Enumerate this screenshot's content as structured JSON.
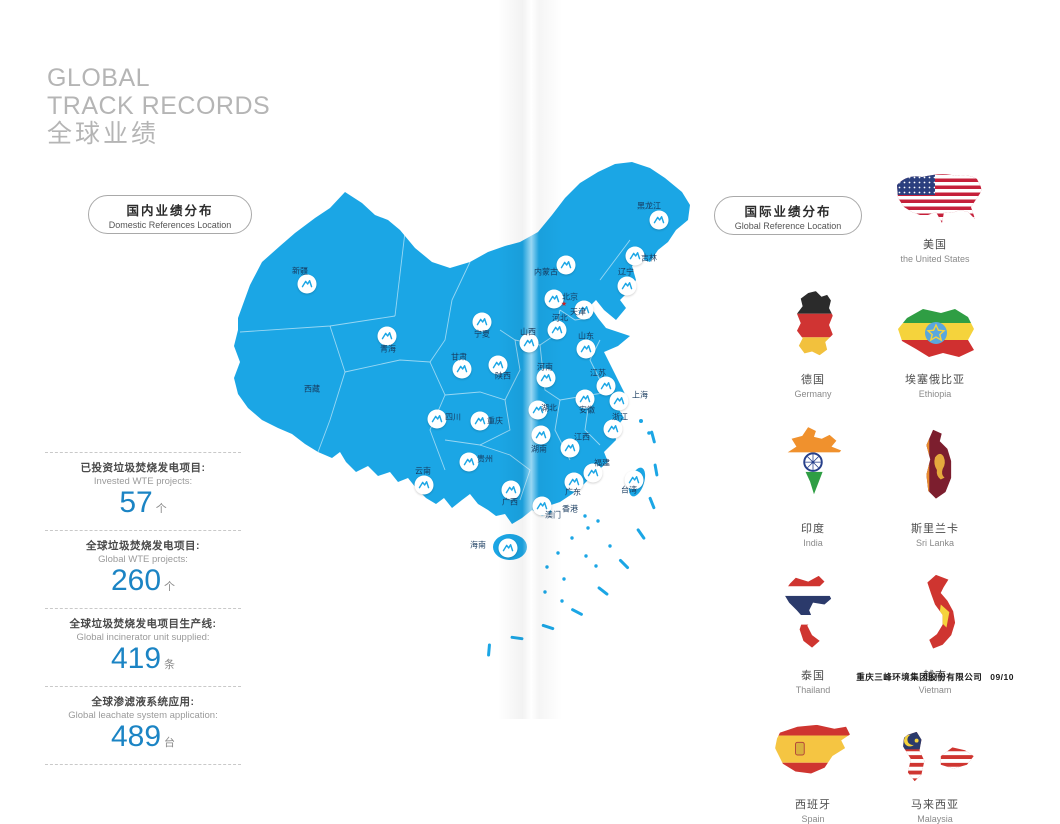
{
  "page": {
    "title_lines": [
      "GLOBAL",
      "TRACK RECORDS",
      "全球业绩"
    ],
    "footer": {
      "company": "重庆三峰环境集团股份有限公司",
      "page_no": "09/10"
    }
  },
  "domestic": {
    "label_zh": "国内业绩分布",
    "label_en": "Domestic References Location",
    "stats": [
      {
        "zh": "已投资垃圾焚烧发电项目:",
        "en": "Invested WTE projects:",
        "value": "57",
        "unit": "个"
      },
      {
        "zh": "全球垃圾焚烧发电项目:",
        "en": "Global WTE projects:",
        "value": "260",
        "unit": "个"
      },
      {
        "zh": "全球垃圾焚烧发电项目生产线:",
        "en": "Global incinerator unit supplied:",
        "value": "419",
        "unit": "条"
      },
      {
        "zh": "全球渗滤液系统应用:",
        "en": "Global leachate system application:",
        "value": "489",
        "unit": "台"
      }
    ],
    "map": {
      "capital_star": [
        564,
        304
      ],
      "provinces": [
        {
          "name": "新疆",
          "label": [
            300,
            271
          ],
          "marker": [
            307,
            284
          ]
        },
        {
          "name": "西藏",
          "label": [
            312,
            389
          ],
          "marker": null
        },
        {
          "name": "青海",
          "label": [
            388,
            349
          ],
          "marker": [
            387,
            336
          ]
        },
        {
          "name": "甘肃",
          "label": [
            459,
            357
          ],
          "marker": [
            462,
            369
          ]
        },
        {
          "name": "宁夏",
          "label": [
            482,
            334
          ],
          "marker": [
            482,
            322
          ]
        },
        {
          "name": "陕西",
          "label": [
            503,
            376
          ],
          "marker": [
            498,
            365
          ]
        },
        {
          "name": "内蒙古",
          "label": [
            546,
            272
          ],
          "marker": [
            566,
            265
          ]
        },
        {
          "name": "黑龙江",
          "label": [
            649,
            206
          ],
          "marker": [
            659,
            220
          ]
        },
        {
          "name": "吉林",
          "label": [
            649,
            258
          ],
          "marker": [
            635,
            256
          ]
        },
        {
          "name": "辽宁",
          "label": [
            626,
            272
          ],
          "marker": [
            627,
            286
          ]
        },
        {
          "name": "北京",
          "label": [
            570,
            297
          ],
          "marker": [
            554,
            299
          ]
        },
        {
          "name": "天津",
          "label": [
            578,
            312
          ],
          "marker": [
            584,
            310
          ]
        },
        {
          "name": "河北",
          "label": [
            560,
            318
          ],
          "marker": [
            557,
            330
          ]
        },
        {
          "name": "山西",
          "label": [
            528,
            332
          ],
          "marker": [
            529,
            343
          ]
        },
        {
          "name": "山东",
          "label": [
            586,
            336
          ],
          "marker": [
            586,
            349
          ]
        },
        {
          "name": "河南",
          "label": [
            545,
            367
          ],
          "marker": [
            546,
            378
          ]
        },
        {
          "name": "江苏",
          "label": [
            598,
            373
          ],
          "marker": [
            606,
            386
          ]
        },
        {
          "name": "上海",
          "label": [
            640,
            395
          ],
          "marker": [
            619,
            401
          ]
        },
        {
          "name": "安徽",
          "label": [
            587,
            410
          ],
          "marker": [
            585,
            399
          ]
        },
        {
          "name": "浙江",
          "label": [
            620,
            417
          ],
          "marker": [
            613,
            429
          ]
        },
        {
          "name": "湖北",
          "label": [
            549,
            408
          ],
          "marker": [
            538,
            410
          ]
        },
        {
          "name": "重庆",
          "label": [
            495,
            421
          ],
          "marker": [
            480,
            421
          ]
        },
        {
          "name": "四川",
          "label": [
            453,
            417
          ],
          "marker": [
            437,
            419
          ]
        },
        {
          "name": "贵州",
          "label": [
            485,
            459
          ],
          "marker": [
            469,
            462
          ]
        },
        {
          "name": "云南",
          "label": [
            423,
            471
          ],
          "marker": [
            424,
            485
          ]
        },
        {
          "name": "湖南",
          "label": [
            539,
            449
          ],
          "marker": [
            541,
            435
          ]
        },
        {
          "name": "江西",
          "label": [
            582,
            437
          ],
          "marker": [
            570,
            448
          ]
        },
        {
          "name": "福建",
          "label": [
            602,
            463
          ],
          "marker": [
            593,
            473
          ]
        },
        {
          "name": "广东",
          "label": [
            573,
            492
          ],
          "marker": [
            574,
            482
          ]
        },
        {
          "name": "广西",
          "label": [
            510,
            502
          ],
          "marker": [
            511,
            490
          ]
        },
        {
          "name": "香港",
          "label": [
            570,
            509
          ],
          "marker": null
        },
        {
          "name": "澳门",
          "label": [
            553,
            515
          ],
          "marker": [
            542,
            506
          ]
        },
        {
          "name": "台湾",
          "label": [
            629,
            490
          ],
          "marker": [
            634,
            480
          ]
        },
        {
          "name": "海南",
          "label": [
            478,
            545
          ],
          "marker": [
            508,
            548
          ]
        }
      ]
    }
  },
  "international": {
    "label_zh": "国际业绩分布",
    "label_en": "Global Reference Location",
    "countries": [
      {
        "zh": "美国",
        "en": "the United States",
        "art": "us"
      },
      {
        "zh": "德国",
        "en": "Germany",
        "art": "de"
      },
      {
        "zh": "埃塞俄比亚",
        "en": "Ethiopia",
        "art": "et"
      },
      {
        "zh": "印度",
        "en": "India",
        "art": "in"
      },
      {
        "zh": "斯里兰卡",
        "en": "Sri Lanka",
        "art": "lk"
      },
      {
        "zh": "泰国",
        "en": "Thailand",
        "art": "th"
      },
      {
        "zh": "越南",
        "en": "Vietnam",
        "art": "vn"
      },
      {
        "zh": "西班牙",
        "en": "Spain",
        "art": "es"
      },
      {
        "zh": "马来西亚",
        "en": "Malaysia",
        "art": "my"
      }
    ]
  },
  "colors": {
    "map_blue": "#1ba6e5",
    "stat_blue": "#1b84c4",
    "title_gray": "#b5b5b5"
  }
}
